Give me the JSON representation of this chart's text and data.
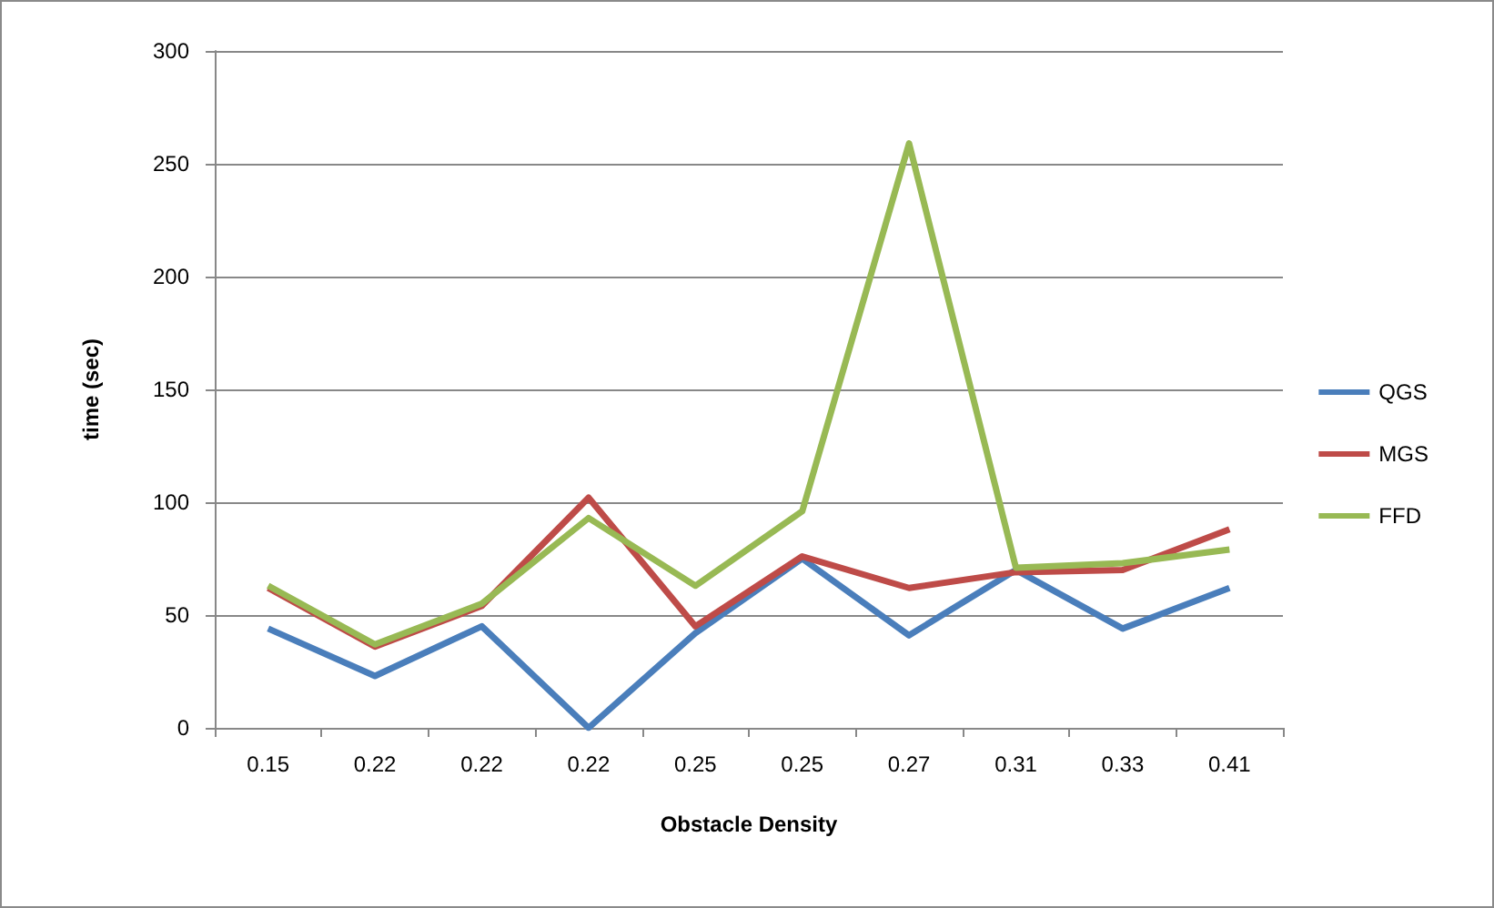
{
  "chart_data": {
    "type": "line",
    "xlabel": "Obstacle Density",
    "ylabel": "time (sec)",
    "categories": [
      "0.15",
      "0.22",
      "0.22",
      "0.22",
      "0.25",
      "0.25",
      "0.27",
      "0.31",
      "0.33",
      "0.41"
    ],
    "series": [
      {
        "name": "QGS",
        "color": "#4a7ebb",
        "values": [
          44,
          23,
          45,
          0,
          42,
          75,
          41,
          70,
          44,
          62
        ]
      },
      {
        "name": "MGS",
        "color": "#be4b48",
        "values": [
          62,
          36,
          54,
          102,
          45,
          76,
          62,
          69,
          70,
          88
        ]
      },
      {
        "name": "FFD",
        "color": "#98b954",
        "values": [
          63,
          37,
          55,
          93,
          63,
          96,
          259,
          71,
          73,
          79
        ]
      }
    ],
    "ylim": [
      0,
      300
    ],
    "yticks": [
      0,
      50,
      100,
      150,
      200,
      250,
      300
    ],
    "grid": "y",
    "legend": "right",
    "marker": "none",
    "line_style": "solid"
  }
}
